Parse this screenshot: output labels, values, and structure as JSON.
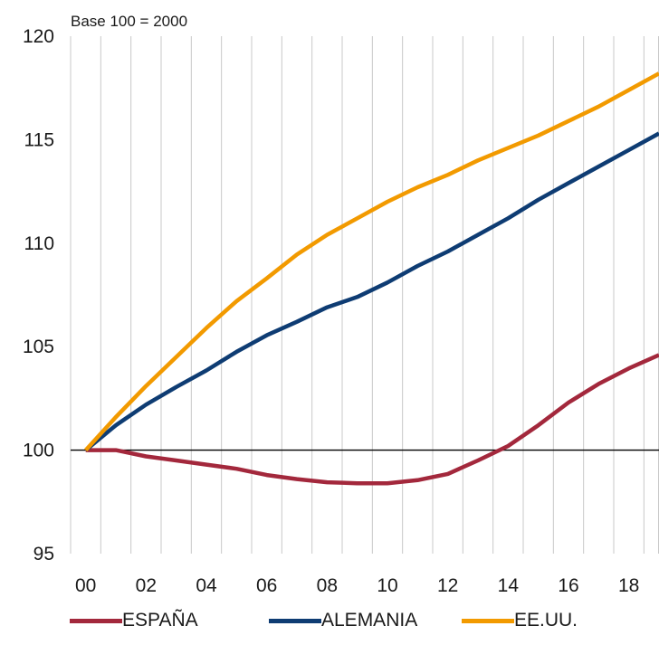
{
  "chart_data": {
    "type": "line",
    "subtitle": "Base 100 = 2000",
    "x": [
      "00",
      "01",
      "02",
      "03",
      "04",
      "05",
      "06",
      "07",
      "08",
      "09",
      "10",
      "11",
      "12",
      "13",
      "14",
      "15",
      "16",
      "17",
      "18",
      "19"
    ],
    "x_tick_labels": [
      "00",
      "02",
      "04",
      "06",
      "08",
      "10",
      "12",
      "14",
      "16",
      "18"
    ],
    "ylim": [
      95,
      120
    ],
    "y_tick_labels": [
      "95",
      "100",
      "105",
      "110",
      "115",
      "120"
    ],
    "grid": "vertical",
    "reference_line": 100,
    "legend_position": "bottom",
    "series": [
      {
        "name": "ESPAÑA",
        "color": "#a3283c",
        "values": [
          100,
          100,
          99.7,
          99.5,
          99.3,
          99.1,
          98.8,
          98.6,
          98.45,
          98.4,
          98.4,
          98.55,
          98.85,
          99.5,
          100.2,
          101.2,
          102.3,
          103.2,
          103.95,
          104.6
        ]
      },
      {
        "name": "ALEMANIA",
        "color": "#0e3c73",
        "values": [
          100,
          101.2,
          102.2,
          103.05,
          103.85,
          104.75,
          105.55,
          106.2,
          106.9,
          107.4,
          108.1,
          108.9,
          109.6,
          110.4,
          111.2,
          112.1,
          112.9,
          113.7,
          114.5,
          115.3
        ]
      },
      {
        "name": "EE.UU.",
        "color": "#f29a00",
        "values": [
          100,
          101.6,
          103.1,
          104.5,
          105.9,
          107.2,
          108.3,
          109.45,
          110.4,
          111.2,
          112.0,
          112.7,
          113.3,
          114.0,
          114.6,
          115.2,
          115.9,
          116.6,
          117.4,
          118.2
        ]
      }
    ]
  }
}
